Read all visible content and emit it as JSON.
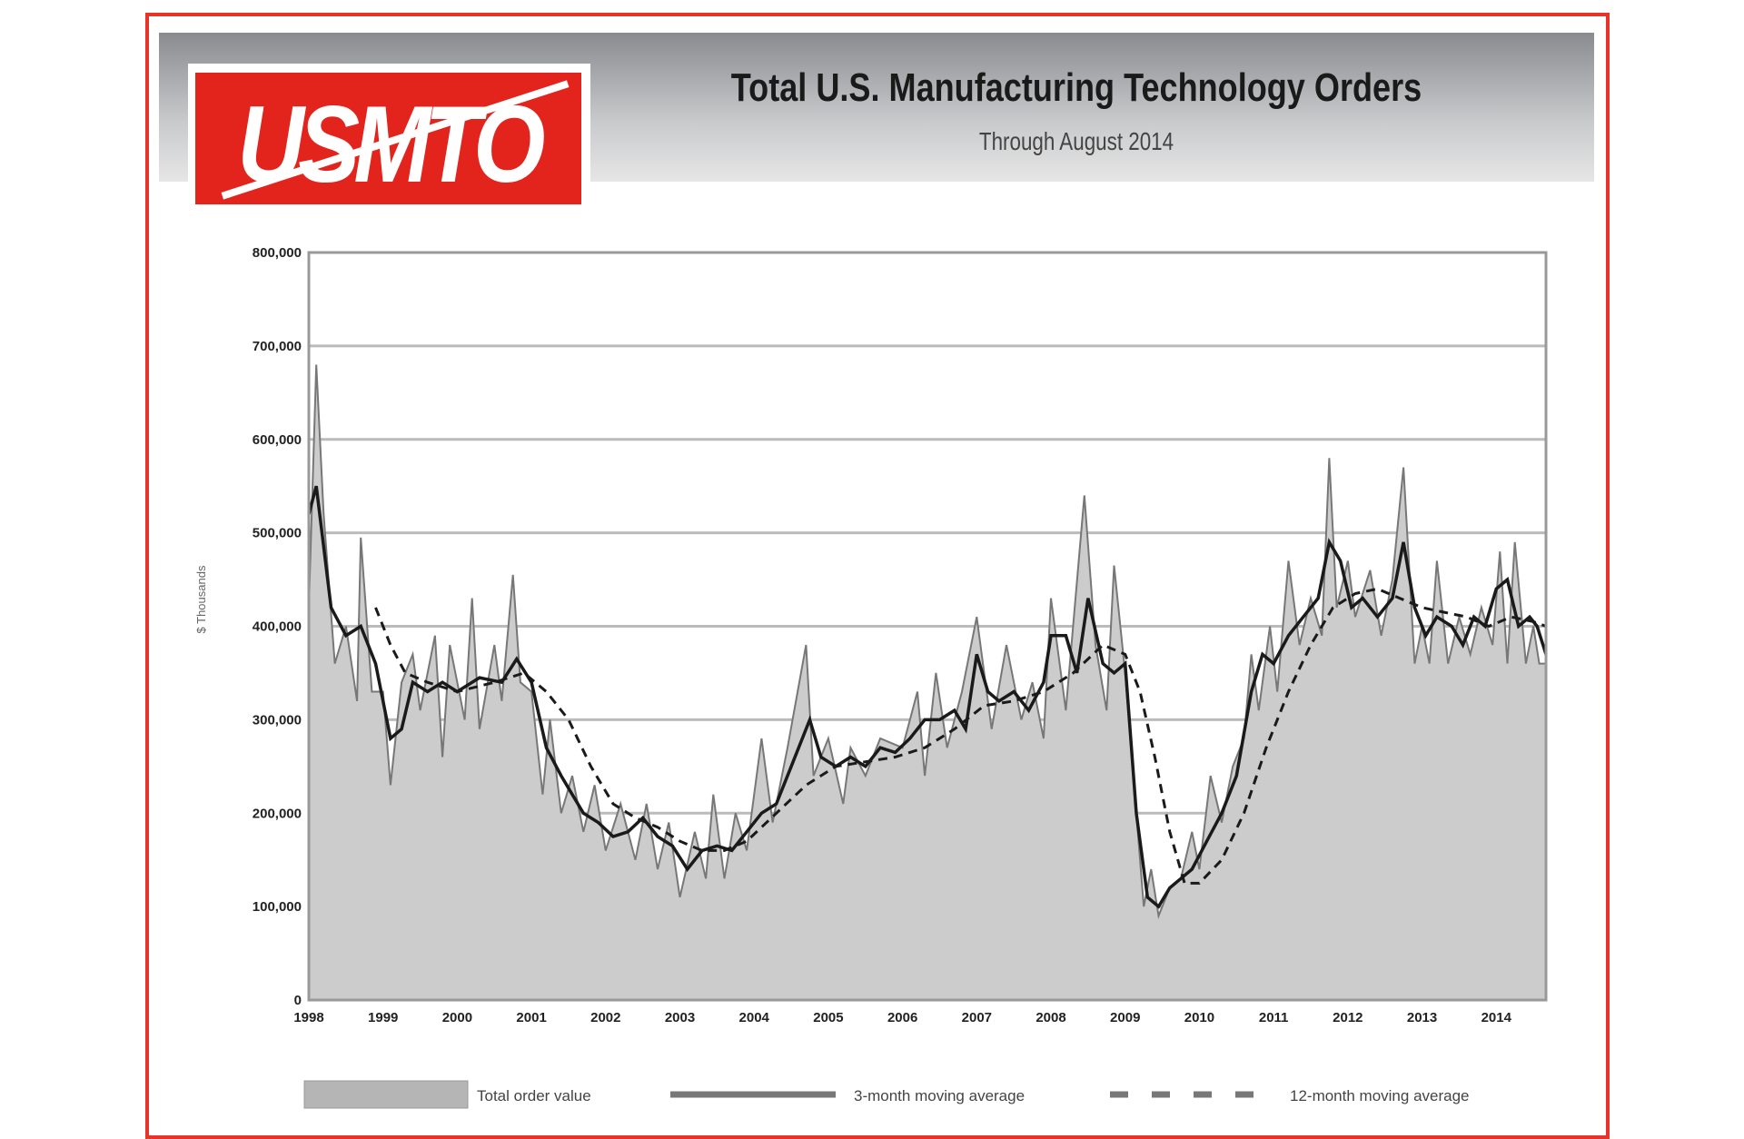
{
  "header": {
    "logo_text": "USMTO",
    "title": "Total U.S. Manufacturing Technology Orders",
    "subtitle": "Through August 2014"
  },
  "colors": {
    "frame": "#e8322a",
    "logo": "#e3241c",
    "area": "#cccccc",
    "total_line": "#777777",
    "ma": "#1a1a1a"
  },
  "chart_data": {
    "type": "area",
    "title": "Total U.S. Manufacturing Technology Orders",
    "subtitle": "Through August 2014",
    "ylabel": "$ Thousands",
    "xlabel": "",
    "ylim": [
      0,
      800000
    ],
    "xlim": [
      1998,
      2014.67
    ],
    "grid": true,
    "legend_position": "bottom",
    "y_ticks": [
      "0",
      "100,000",
      "200,000",
      "300,000",
      "400,000",
      "500,000",
      "600,000",
      "700,000",
      "800,000"
    ],
    "x_ticks": [
      "1998",
      "1999",
      "2000",
      "2001",
      "2002",
      "2003",
      "2004",
      "2005",
      "2006",
      "2007",
      "2008",
      "2009",
      "2010",
      "2011",
      "2012",
      "2013",
      "2014"
    ],
    "series": [
      {
        "name": "Total order value",
        "style": "area",
        "x": [
          1998.0,
          1998.1,
          1998.2,
          1998.35,
          1998.5,
          1998.65,
          1998.7,
          1998.85,
          1999.0,
          1999.1,
          1999.25,
          1999.4,
          1999.5,
          1999.7,
          1999.8,
          1999.9,
          2000.1,
          2000.2,
          2000.3,
          2000.5,
          2000.6,
          2000.75,
          2000.85,
          2001.0,
          2001.15,
          2001.25,
          2001.4,
          2001.55,
          2001.7,
          2001.85,
          2002.0,
          2002.2,
          2002.4,
          2002.55,
          2002.7,
          2002.85,
          2003.0,
          2003.2,
          2003.35,
          2003.45,
          2003.6,
          2003.75,
          2003.9,
          2004.1,
          2004.25,
          2004.45,
          2004.7,
          2004.8,
          2005.0,
          2005.2,
          2005.3,
          2005.5,
          2005.7,
          2006.0,
          2006.2,
          2006.3,
          2006.45,
          2006.6,
          2006.8,
          2007.0,
          2007.2,
          2007.4,
          2007.6,
          2007.75,
          2007.9,
          2008.0,
          2008.2,
          2008.45,
          2008.6,
          2008.75,
          2008.85,
          2009.0,
          2009.15,
          2009.25,
          2009.35,
          2009.45,
          2009.6,
          2009.75,
          2009.9,
          2010.0,
          2010.15,
          2010.3,
          2010.45,
          2010.6,
          2010.7,
          2010.8,
          2010.95,
          2011.05,
          2011.2,
          2011.35,
          2011.5,
          2011.65,
          2011.75,
          2011.85,
          2012.0,
          2012.1,
          2012.3,
          2012.45,
          2012.6,
          2012.75,
          2012.9,
          2013.0,
          2013.1,
          2013.2,
          2013.35,
          2013.5,
          2013.65,
          2013.8,
          2013.95,
          2014.05,
          2014.15,
          2014.25,
          2014.4,
          2014.5,
          2014.58,
          2014.67
        ],
        "values": [
          420000,
          680000,
          520000,
          360000,
          400000,
          320000,
          495000,
          330000,
          330000,
          230000,
          340000,
          370000,
          310000,
          390000,
          260000,
          380000,
          300000,
          430000,
          290000,
          380000,
          320000,
          455000,
          340000,
          330000,
          220000,
          300000,
          200000,
          240000,
          180000,
          230000,
          160000,
          210000,
          150000,
          210000,
          140000,
          190000,
          110000,
          180000,
          130000,
          220000,
          130000,
          200000,
          160000,
          280000,
          190000,
          270000,
          380000,
          240000,
          280000,
          210000,
          270000,
          240000,
          280000,
          270000,
          330000,
          240000,
          350000,
          270000,
          330000,
          410000,
          290000,
          380000,
          300000,
          340000,
          280000,
          430000,
          310000,
          540000,
          380000,
          310000,
          465000,
          350000,
          200000,
          100000,
          140000,
          90000,
          120000,
          130000,
          180000,
          140000,
          240000,
          190000,
          250000,
          280000,
          370000,
          310000,
          400000,
          330000,
          470000,
          380000,
          430000,
          390000,
          580000,
          420000,
          470000,
          410000,
          460000,
          390000,
          450000,
          570000,
          360000,
          400000,
          360000,
          470000,
          360000,
          410000,
          370000,
          420000,
          380000,
          480000,
          360000,
          490000,
          360000,
          400000,
          360000,
          360000
        ]
      },
      {
        "name": "3-month moving average",
        "style": "solid",
        "x": [
          1998.0,
          1998.1,
          1998.3,
          1998.5,
          1998.7,
          1998.9,
          1999.1,
          1999.25,
          1999.4,
          1999.6,
          1999.8,
          2000.0,
          2000.3,
          2000.6,
          2000.8,
          2001.0,
          2001.2,
          2001.4,
          2001.55,
          2001.7,
          2001.9,
          2002.1,
          2002.3,
          2002.5,
          2002.7,
          2002.9,
          2003.1,
          2003.3,
          2003.5,
          2003.7,
          2003.9,
          2004.1,
          2004.3,
          2004.5,
          2004.75,
          2004.9,
          2005.1,
          2005.3,
          2005.5,
          2005.7,
          2005.9,
          2006.1,
          2006.3,
          2006.5,
          2006.7,
          2006.85,
          2007.0,
          2007.15,
          2007.3,
          2007.5,
          2007.7,
          2007.9,
          2008.0,
          2008.2,
          2008.35,
          2008.5,
          2008.7,
          2008.85,
          2009.0,
          2009.15,
          2009.3,
          2009.45,
          2009.6,
          2009.75,
          2009.9,
          2010.1,
          2010.3,
          2010.5,
          2010.7,
          2010.85,
          2011.0,
          2011.2,
          2011.4,
          2011.6,
          2011.75,
          2011.9,
          2012.05,
          2012.2,
          2012.4,
          2012.6,
          2012.75,
          2012.9,
          2013.05,
          2013.2,
          2013.4,
          2013.55,
          2013.7,
          2013.85,
          2014.0,
          2014.15,
          2014.3,
          2014.45,
          2014.55,
          2014.67
        ],
        "values": [
          520000,
          550000,
          420000,
          390000,
          400000,
          360000,
          280000,
          290000,
          340000,
          330000,
          340000,
          330000,
          345000,
          340000,
          365000,
          340000,
          270000,
          240000,
          220000,
          200000,
          190000,
          175000,
          180000,
          195000,
          175000,
          165000,
          140000,
          160000,
          165000,
          160000,
          180000,
          200000,
          210000,
          250000,
          300000,
          260000,
          250000,
          260000,
          250000,
          270000,
          265000,
          280000,
          300000,
          300000,
          310000,
          290000,
          370000,
          330000,
          320000,
          330000,
          310000,
          340000,
          390000,
          390000,
          350000,
          430000,
          360000,
          350000,
          360000,
          200000,
          110000,
          100000,
          120000,
          130000,
          140000,
          170000,
          200000,
          240000,
          330000,
          370000,
          360000,
          390000,
          410000,
          430000,
          490000,
          470000,
          420000,
          430000,
          410000,
          430000,
          490000,
          420000,
          390000,
          410000,
          400000,
          380000,
          410000,
          400000,
          440000,
          450000,
          400000,
          410000,
          400000,
          370000
        ]
      },
      {
        "name": "12-month moving average",
        "style": "dashed",
        "x": [
          1998.9,
          1999.1,
          1999.3,
          1999.6,
          2000.0,
          2000.5,
          2000.9,
          2001.2,
          2001.5,
          2001.8,
          2002.1,
          2002.4,
          2002.7,
          2003.0,
          2003.3,
          2003.6,
          2003.9,
          2004.3,
          2004.7,
          2005.1,
          2005.5,
          2005.9,
          2006.3,
          2006.7,
          2007.1,
          2007.5,
          2007.9,
          2008.3,
          2008.7,
          2009.0,
          2009.2,
          2009.4,
          2009.6,
          2009.8,
          2010.0,
          2010.3,
          2010.6,
          2010.9,
          2011.2,
          2011.5,
          2011.8,
          2012.1,
          2012.4,
          2012.7,
          2013.0,
          2013.3,
          2013.6,
          2013.9,
          2014.2,
          2014.5,
          2014.67
        ],
        "values": [
          420000,
          380000,
          350000,
          340000,
          330000,
          340000,
          350000,
          330000,
          300000,
          250000,
          210000,
          195000,
          185000,
          170000,
          160000,
          160000,
          170000,
          200000,
          230000,
          250000,
          255000,
          260000,
          270000,
          290000,
          315000,
          320000,
          330000,
          350000,
          380000,
          370000,
          330000,
          260000,
          180000,
          125000,
          125000,
          150000,
          200000,
          270000,
          330000,
          380000,
          420000,
          435000,
          440000,
          430000,
          420000,
          415000,
          410000,
          400000,
          410000,
          405000,
          400000
        ]
      }
    ]
  }
}
